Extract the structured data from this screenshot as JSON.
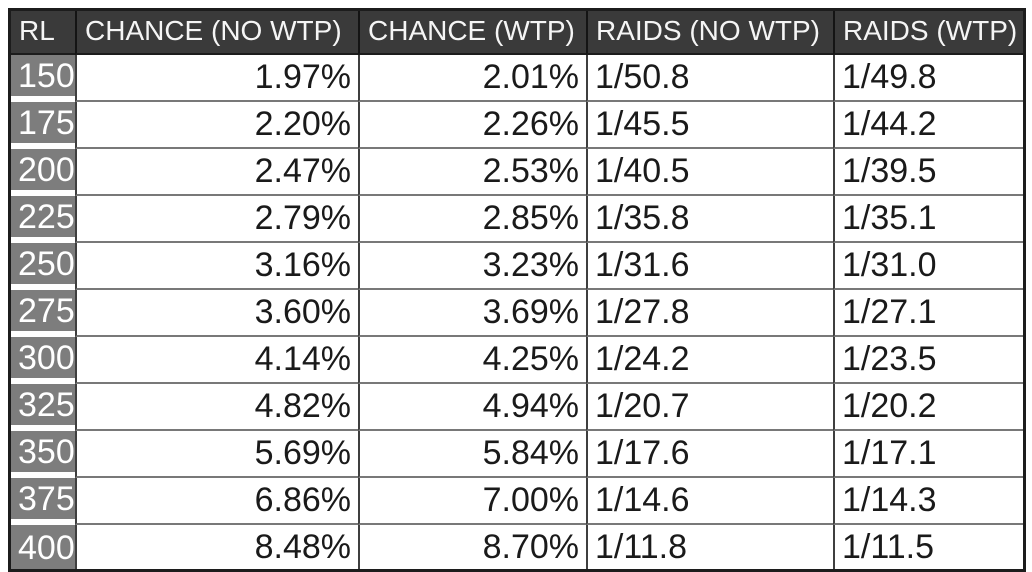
{
  "chart_data": {
    "type": "table",
    "title": "",
    "columns": [
      {
        "key": "rl",
        "label": "RL",
        "align": "left"
      },
      {
        "key": "chance_no_wtp",
        "label": "CHANCE (NO WTP)",
        "align": "right"
      },
      {
        "key": "chance_wtp",
        "label": "CHANCE (WTP)",
        "align": "right"
      },
      {
        "key": "raids_no_wtp",
        "label": "RAIDS (NO WTP)",
        "align": "left"
      },
      {
        "key": "raids_wtp",
        "label": "RAIDS (WTP)",
        "align": "left"
      }
    ],
    "rows": [
      {
        "rl": "150",
        "chance_no_wtp": "1.97%",
        "chance_wtp": "2.01%",
        "raids_no_wtp": "1/50.8",
        "raids_wtp": "1/49.8"
      },
      {
        "rl": "175",
        "chance_no_wtp": "2.20%",
        "chance_wtp": "2.26%",
        "raids_no_wtp": "1/45.5",
        "raids_wtp": "1/44.2"
      },
      {
        "rl": "200",
        "chance_no_wtp": "2.47%",
        "chance_wtp": "2.53%",
        "raids_no_wtp": "1/40.5",
        "raids_wtp": "1/39.5"
      },
      {
        "rl": "225",
        "chance_no_wtp": "2.79%",
        "chance_wtp": "2.85%",
        "raids_no_wtp": "1/35.8",
        "raids_wtp": "1/35.1"
      },
      {
        "rl": "250",
        "chance_no_wtp": "3.16%",
        "chance_wtp": "3.23%",
        "raids_no_wtp": "1/31.6",
        "raids_wtp": "1/31.0"
      },
      {
        "rl": "275",
        "chance_no_wtp": "3.60%",
        "chance_wtp": "3.69%",
        "raids_no_wtp": "1/27.8",
        "raids_wtp": "1/27.1"
      },
      {
        "rl": "300",
        "chance_no_wtp": "4.14%",
        "chance_wtp": "4.25%",
        "raids_no_wtp": "1/24.2",
        "raids_wtp": "1/23.5"
      },
      {
        "rl": "325",
        "chance_no_wtp": "4.82%",
        "chance_wtp": "4.94%",
        "raids_no_wtp": "1/20.7",
        "raids_wtp": "1/20.2"
      },
      {
        "rl": "350",
        "chance_no_wtp": "5.69%",
        "chance_wtp": "5.84%",
        "raids_no_wtp": "1/17.6",
        "raids_wtp": "1/17.1"
      },
      {
        "rl": "375",
        "chance_no_wtp": "6.86%",
        "chance_wtp": "7.00%",
        "raids_no_wtp": "1/14.6",
        "raids_wtp": "1/14.3"
      },
      {
        "rl": "400",
        "chance_no_wtp": "8.48%",
        "chance_wtp": "8.70%",
        "raids_no_wtp": "1/11.8",
        "raids_wtp": "1/11.5"
      }
    ]
  },
  "colors": {
    "header_bg": "#3a3a3a",
    "header_text": "#f5f5f5",
    "row_header_bg": "#7d7d7d",
    "row_header_text": "#ffffff",
    "cell_bg": "#ffffff",
    "cell_text": "#1a1a1a",
    "outer_border": "#1c1c1c",
    "row_line": "#787878",
    "col_line": "#3f3f3f",
    "row_gap": "#ffffff",
    "page_bg": "#ffffff"
  }
}
